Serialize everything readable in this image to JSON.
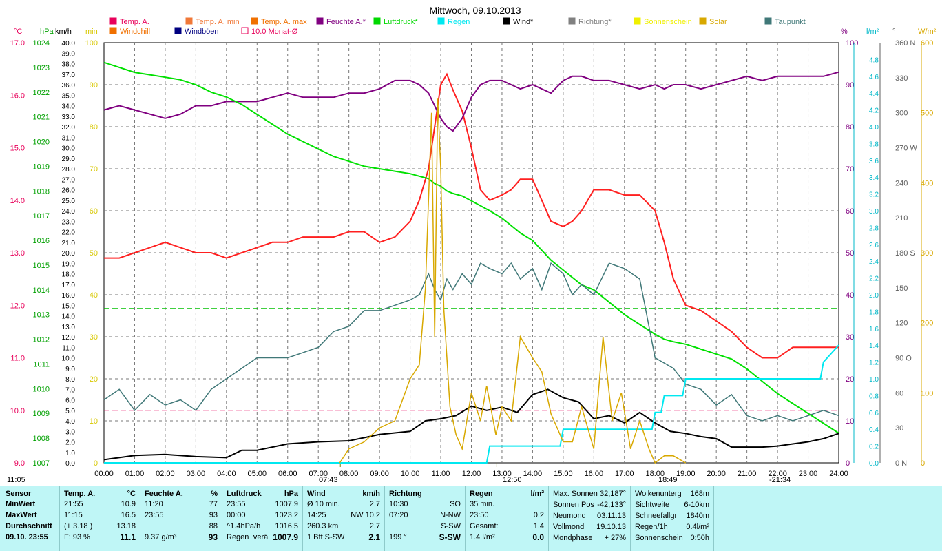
{
  "chart_data": {
    "type": "line",
    "title": "Mittwoch, 09.10.2013",
    "x_ticks": [
      "00:00",
      "01:00",
      "02:00",
      "03:00",
      "04:00",
      "05:00",
      "06:00",
      "07:00",
      "08:00",
      "09:00",
      "10:00",
      "11:00",
      "12:00",
      "13:00",
      "14:00",
      "15:00",
      "16:00",
      "17:00",
      "18:00",
      "19:00",
      "20:00",
      "21:00",
      "22:00",
      "23:00",
      "24:00"
    ],
    "legend": [
      {
        "label": "Temp. A.",
        "color": "#e8005a"
      },
      {
        "label": "Temp. A. min",
        "color": "#f07838"
      },
      {
        "label": "Temp. A. max",
        "color": "#f07000"
      },
      {
        "label": "Feuchte A.*",
        "color": "#800080"
      },
      {
        "label": "Luftdruck*",
        "color": "#00d800"
      },
      {
        "label": "Regen",
        "color": "#00e8f0"
      },
      {
        "label": "Wind*",
        "color": "#000000"
      },
      {
        "label": "Richtung*",
        "color": "#808080"
      },
      {
        "label": "Sonnenschein",
        "color": "#f0f000"
      },
      {
        "label": "Solar",
        "color": "#d8a800"
      },
      {
        "label": "Taupunkt",
        "color": "#407878"
      },
      {
        "label": "Windchill",
        "color": "#f07000"
      },
      {
        "label": "Windböen",
        "color": "#000080"
      },
      {
        "label": "10.0 Monat-Ø",
        "color": "#e8005a"
      }
    ],
    "axes": {
      "temp": {
        "unit": "°C",
        "range": [
          9.0,
          17.0
        ],
        "ticks": [
          "17.0",
          "16.0",
          "15.0",
          "14.0",
          "13.0",
          "12.0",
          "11.0",
          "10.0",
          "9.0"
        ]
      },
      "pressure": {
        "unit": "hPa",
        "range": [
          1007,
          1024
        ],
        "ticks": [
          "1024",
          "1023",
          "1022",
          "1021",
          "1020",
          "1019",
          "1018",
          "1017",
          "1016",
          "1015",
          "1014",
          "1013",
          "1012",
          "1011",
          "1010",
          "1009",
          "1008",
          "1007"
        ]
      },
      "wind": {
        "unit": "km/h",
        "range": [
          0,
          40
        ]
      },
      "sunshine": {
        "unit": "min",
        "range": [
          0,
          100
        ],
        "ticks": [
          "100",
          "90",
          "80",
          "70",
          "60",
          "50",
          "40",
          "30",
          "20",
          "10",
          "0"
        ]
      },
      "humidity": {
        "unit": "%",
        "range": [
          0,
          100
        ],
        "ticks": [
          "100",
          "90",
          "80",
          "70",
          "60",
          "50",
          "40",
          "30",
          "20",
          "10",
          "0"
        ]
      },
      "rain": {
        "unit": "l/m²",
        "range": [
          0,
          5.0
        ],
        "ticks": [
          "4.8",
          "4.6",
          "4.4",
          "4.2",
          "4.0",
          "3.8",
          "3.6",
          "3.4",
          "3.2",
          "3.0",
          "2.8",
          "2.6",
          "2.4",
          "2.2",
          "2.0",
          "1.8",
          "1.6",
          "1.4",
          "1.2",
          "1.0",
          "0.8",
          "0.6",
          "0.4",
          "0.2",
          "0.0"
        ]
      },
      "direction": {
        "unit": "°",
        "range": [
          0,
          360
        ],
        "ticks": [
          "360 N",
          "330",
          "300",
          "270 W",
          "240",
          "210",
          "180 S",
          "150",
          "120",
          "90 O",
          "60",
          "30",
          "0 N"
        ]
      },
      "solar": {
        "unit": "W/m²",
        "range": [
          0,
          600
        ],
        "ticks": [
          "600",
          "500",
          "400",
          "300",
          "200",
          "100",
          "0"
        ]
      }
    },
    "reference_lines": [
      {
        "series": "temperature",
        "value": 10.0,
        "label": "10.0 Monat-Ø"
      },
      {
        "series": "pressure",
        "value": 1013.25
      }
    ],
    "series": [
      {
        "name": "Temp. A.",
        "axis": "temp",
        "x": [
          0,
          0.5,
          1,
          1.5,
          2,
          2.5,
          3,
          3.5,
          4,
          4.5,
          5,
          5.5,
          6,
          6.5,
          7,
          7.5,
          8,
          8.5,
          9,
          9.5,
          10,
          10.3,
          10.6,
          10.8,
          11,
          11.2,
          11.4,
          11.7,
          12,
          12.3,
          12.6,
          13,
          13.3,
          13.6,
          14,
          14.3,
          14.6,
          15,
          15.3,
          15.6,
          16,
          16.5,
          17,
          17.5,
          18,
          18.3,
          18.6,
          19,
          19.5,
          20,
          20.5,
          21,
          21.5,
          22,
          22.5,
          23,
          23.5,
          24
        ],
        "y": [
          12.9,
          12.9,
          13.0,
          13.1,
          13.2,
          13.1,
          13.0,
          13.0,
          12.9,
          13.0,
          13.1,
          13.2,
          13.2,
          13.3,
          13.3,
          13.3,
          13.4,
          13.4,
          13.2,
          13.3,
          13.6,
          14.0,
          14.6,
          15.4,
          16.2,
          16.4,
          16.1,
          15.7,
          15.0,
          14.2,
          14.0,
          14.1,
          14.2,
          14.4,
          14.4,
          14.0,
          13.6,
          13.5,
          13.6,
          13.8,
          14.2,
          14.2,
          14.1,
          14.1,
          13.8,
          13.2,
          12.5,
          12.0,
          11.9,
          11.7,
          11.5,
          11.2,
          11.0,
          11.0,
          11.2,
          11.2,
          11.2,
          11.2
        ]
      },
      {
        "name": "Feuchte A.*",
        "axis": "humidity",
        "x": [
          0,
          0.5,
          1,
          1.5,
          2,
          2.5,
          3,
          3.5,
          4,
          4.5,
          5,
          5.5,
          6,
          6.5,
          7,
          7.5,
          8,
          8.5,
          9,
          9.5,
          10,
          10.3,
          10.6,
          10.8,
          11,
          11.2,
          11.4,
          11.7,
          12,
          12.3,
          12.6,
          13,
          13.3,
          13.6,
          14,
          14.3,
          14.6,
          15,
          15.3,
          15.6,
          16,
          16.5,
          17,
          17.5,
          18,
          18.3,
          18.6,
          19,
          19.5,
          20,
          20.5,
          21,
          21.5,
          22,
          22.5,
          23,
          23.5,
          24
        ],
        "y": [
          84,
          85,
          84,
          83,
          82,
          83,
          85,
          85,
          86,
          86,
          86,
          87,
          88,
          87,
          87,
          87,
          88,
          88,
          89,
          91,
          91,
          90,
          88,
          85,
          82,
          80,
          79,
          82,
          87,
          90,
          91,
          91,
          90,
          89,
          90,
          89,
          88,
          91,
          92,
          92,
          91,
          91,
          90,
          89,
          90,
          89,
          90,
          90,
          89,
          90,
          91,
          92,
          91,
          92,
          92,
          92,
          92,
          93
        ]
      },
      {
        "name": "Luftdruck*",
        "axis": "pressure",
        "x": [
          0,
          0.5,
          1,
          1.5,
          2,
          2.5,
          3,
          3.5,
          4,
          4.5,
          5,
          5.5,
          6,
          6.5,
          7,
          7.5,
          8,
          8.5,
          9,
          9.5,
          10,
          10.3,
          10.6,
          10.8,
          11,
          11.2,
          11.4,
          11.7,
          12,
          12.3,
          12.6,
          13,
          13.3,
          13.6,
          14,
          14.3,
          14.6,
          15,
          15.3,
          15.6,
          16,
          16.5,
          17,
          17.5,
          18,
          18.3,
          18.6,
          19,
          19.5,
          20,
          20.5,
          21,
          21.5,
          22,
          22.5,
          23,
          23.5,
          24
        ],
        "y": [
          1023.2,
          1023.0,
          1022.8,
          1022.7,
          1022.6,
          1022.5,
          1022.3,
          1022.0,
          1021.8,
          1021.5,
          1021.1,
          1020.7,
          1020.3,
          1020.0,
          1019.7,
          1019.4,
          1019.2,
          1019.0,
          1018.9,
          1018.8,
          1018.7,
          1018.6,
          1018.5,
          1018.3,
          1018.2,
          1018.0,
          1017.9,
          1017.8,
          1017.6,
          1017.4,
          1017.2,
          1016.9,
          1016.6,
          1016.3,
          1016.0,
          1015.6,
          1015.2,
          1014.8,
          1014.5,
          1014.2,
          1014.0,
          1013.5,
          1013.0,
          1012.6,
          1012.2,
          1012.0,
          1011.9,
          1011.8,
          1011.6,
          1011.4,
          1011.2,
          1010.8,
          1010.3,
          1009.8,
          1009.4,
          1009.0,
          1008.6,
          1008.2
        ]
      },
      {
        "name": "Taupunkt",
        "axis": "temp",
        "x": [
          0,
          0.5,
          1,
          1.5,
          2,
          2.5,
          3,
          3.5,
          4,
          4.5,
          5,
          5.5,
          6,
          6.5,
          7,
          7.5,
          8,
          8.5,
          9,
          9.5,
          10,
          10.3,
          10.6,
          10.8,
          11,
          11.2,
          11.4,
          11.7,
          12,
          12.3,
          12.6,
          13,
          13.3,
          13.6,
          14,
          14.3,
          14.6,
          15,
          15.3,
          15.6,
          16,
          16.5,
          17,
          17.5,
          18,
          18.3,
          18.6,
          19,
          19.5,
          20,
          20.5,
          21,
          21.5,
          22,
          22.5,
          23,
          23.5,
          24
        ],
        "y": [
          10.2,
          10.4,
          10.0,
          10.3,
          10.1,
          10.2,
          10.0,
          10.4,
          10.6,
          10.8,
          11.0,
          11.0,
          11.0,
          11.1,
          11.2,
          11.5,
          11.6,
          11.9,
          11.9,
          12.0,
          12.1,
          12.2,
          12.6,
          12.3,
          12.1,
          12.5,
          12.3,
          12.6,
          12.4,
          12.8,
          12.7,
          12.6,
          12.8,
          12.5,
          12.7,
          12.3,
          12.8,
          12.6,
          12.2,
          12.4,
          12.2,
          12.8,
          12.7,
          12.5,
          11.0,
          10.9,
          10.8,
          10.5,
          10.4,
          10.1,
          10.3,
          9.9,
          9.8,
          9.9,
          9.8,
          9.9,
          10.0,
          9.9
        ]
      },
      {
        "name": "Wind*",
        "axis": "wind",
        "x": [
          0,
          1,
          2,
          3,
          4,
          4.5,
          5,
          6,
          7,
          8,
          9,
          10,
          10.5,
          11,
          11.5,
          12,
          12.5,
          13,
          13.5,
          14,
          14.5,
          15,
          15.5,
          16,
          16.5,
          17,
          17.5,
          18,
          18.5,
          19,
          19.5,
          20,
          20.5,
          21,
          21.5,
          22,
          22.5,
          23,
          23.5,
          24
        ],
        "y": [
          0.3,
          0.7,
          0.8,
          0.6,
          0.5,
          1.2,
          1.2,
          1.8,
          2.0,
          2.1,
          2.7,
          3.0,
          4.0,
          4.2,
          4.5,
          5.4,
          5.0,
          5.3,
          4.8,
          6.5,
          7.0,
          6.2,
          5.8,
          4.2,
          4.5,
          3.8,
          4.8,
          3.8,
          3.0,
          2.8,
          2.5,
          2.3,
          1.5,
          1.5,
          1.5,
          1.6,
          1.8,
          2.0,
          2.3,
          2.8
        ]
      },
      {
        "name": "Regen",
        "axis": "rain",
        "x": [
          0,
          12.5,
          12.6,
          14.9,
          15.0,
          17.9,
          18.0,
          18.2,
          18.3,
          18.9,
          19.0,
          23.4,
          23.5,
          24.0
        ],
        "y": [
          0,
          0,
          0.2,
          0.2,
          0.4,
          0.4,
          0.6,
          0.6,
          0.8,
          0.8,
          1.0,
          1.0,
          1.2,
          1.4
        ]
      },
      {
        "name": "Solar",
        "axis": "solar",
        "x": [
          7.7,
          8,
          8.5,
          9,
          9.5,
          10,
          10.3,
          10.5,
          10.7,
          10.8,
          10.9,
          11.0,
          11.1,
          11.3,
          11.5,
          11.7,
          12.0,
          12.3,
          12.5,
          12.8,
          13.0,
          13.3,
          13.6,
          14.0,
          14.3,
          14.6,
          15.0,
          15.3,
          15.6,
          16.0,
          16.3,
          16.6,
          16.9,
          17.2,
          17.5,
          17.8,
          18.0,
          18.3,
          18.6,
          19
        ],
        "y": [
          0,
          20,
          30,
          50,
          60,
          120,
          140,
          250,
          500,
          180,
          520,
          420,
          220,
          80,
          40,
          20,
          100,
          60,
          110,
          40,
          80,
          60,
          180,
          150,
          130,
          70,
          30,
          30,
          80,
          20,
          180,
          60,
          100,
          20,
          60,
          20,
          0,
          10,
          10,
          0
        ]
      }
    ]
  },
  "notes": {
    "sunrise": "07:43",
    "noon": "12:50",
    "sunset": "18:49",
    "moonrise": "-21:34",
    "midnight": "11:05"
  },
  "summary": {
    "sensor": {
      "header": "Sensor",
      "rows": [
        "MinWert",
        "MaxWert",
        "Durchschnitt",
        "09.10. 23:55"
      ]
    },
    "temp": {
      "header": "Temp. A.",
      "unit": "°C",
      "rows": [
        [
          "21:55",
          "10.9"
        ],
        [
          "11:15",
          "16.5"
        ],
        [
          "(+ 3.18 )",
          "13.18"
        ],
        [
          "F: 93 %",
          "11.1"
        ]
      ]
    },
    "humid": {
      "header": "Feuchte A.",
      "unit": "%",
      "rows": [
        [
          "11:20",
          "77"
        ],
        [
          "23:55",
          "93"
        ],
        [
          "",
          "88"
        ],
        [
          "9.37 g/m³",
          "93"
        ]
      ]
    },
    "press": {
      "header": "Luftdruck",
      "unit": "hPa",
      "rows": [
        [
          "23:55",
          "1007.9"
        ],
        [
          "00:00",
          "1023.2"
        ],
        [
          "^1.4hPa/h",
          "1016.5"
        ],
        [
          "Regen+verä",
          "1007.9"
        ]
      ]
    },
    "wind": {
      "header": "Wind",
      "unit": "km/h",
      "rows": [
        [
          "Ø 10 min.",
          "2.7"
        ],
        [
          "14:25",
          "NW 10.2"
        ],
        [
          "260.3 km",
          "2.7"
        ],
        [
          "1 Bft S-SW",
          "2.1"
        ]
      ]
    },
    "dir": {
      "header": "Richtung",
      "rows": [
        [
          "10:30",
          "SO"
        ],
        [
          "07:20",
          "N-NW"
        ],
        [
          "",
          "S-SW"
        ],
        [
          "199 °",
          "S-SW"
        ]
      ]
    },
    "rain": {
      "header": "Regen",
      "unit": "l/m²",
      "rows": [
        [
          "35 min.",
          ""
        ],
        [
          "23:50",
          "0.2"
        ],
        [
          "Gesamt:",
          "1.4"
        ],
        [
          "1.4 l/m²",
          "0.0"
        ]
      ]
    },
    "astro": {
      "rows": [
        [
          "Max. Sonnen",
          "32,187°"
        ],
        [
          "Sonnen Pos",
          "-42,133°"
        ],
        [
          "Neumond",
          "03.11.13"
        ],
        [
          "Vollmond",
          "19.10.13"
        ],
        [
          "Mondphase",
          "+ 27%"
        ]
      ]
    },
    "misc": {
      "rows": [
        [
          "Wolkenunterg",
          "168m"
        ],
        [
          "Sichtweite",
          "6-10km"
        ],
        [
          "Schneefallgr",
          "1840m"
        ],
        [
          "Regen/1h",
          "0.4l/m²"
        ],
        [
          "Sonnenschein",
          "0:50h"
        ]
      ]
    }
  }
}
